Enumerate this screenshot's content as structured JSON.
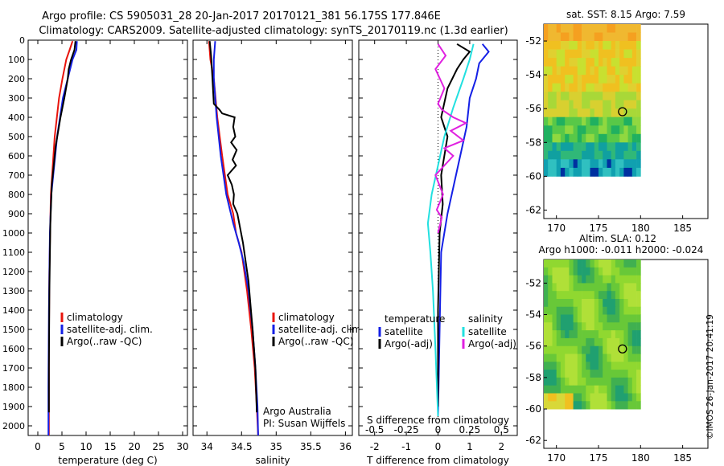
{
  "header": {
    "line1": "Argo profile: CS 5905031_28 20-Jan-2017 20170121_381 56.175S 177.846E",
    "line2": "Climatology: CARS2009. Satellite-adjusted climatology: synTS_20170119.nc (1.3d earlier)"
  },
  "colors": {
    "climatology": "#e8140c",
    "satellite": "#1420e6",
    "argo": "#000000",
    "sat_salinity": "#22e0e0",
    "argo_salinity": "#e020e0"
  },
  "chart_data": [
    {
      "type": "line",
      "xlabel": "temperature (deg C)",
      "ylabel": "",
      "xlim": [
        -2,
        31
      ],
      "ylim": [
        2050,
        0
      ],
      "xticks": [
        0,
        5,
        10,
        15,
        20,
        25,
        30
      ],
      "yticks": [
        0,
        100,
        200,
        300,
        400,
        500,
        600,
        700,
        800,
        900,
        1000,
        1100,
        1200,
        1300,
        1400,
        1500,
        1600,
        1700,
        1800,
        1900,
        2000
      ],
      "legend": {
        "position": "center-right",
        "entries": [
          "climatology",
          "satellite-adj. clim.",
          "Argo(..raw -QC)"
        ]
      },
      "series": [
        {
          "name": "climatology",
          "color": "#e8140c",
          "x": [
            7.2,
            6.6,
            5.9,
            5.1,
            4.4,
            3.5,
            2.7,
            2.4,
            2.3,
            2.3
          ],
          "y": [
            5,
            50,
            100,
            200,
            300,
            500,
            800,
            1200,
            1600,
            2050
          ]
        },
        {
          "name": "satellite-adj. clim.",
          "color": "#1420e6",
          "x": [
            8.1,
            8.0,
            7.2,
            6.2,
            5.2,
            4.0,
            2.8,
            2.5,
            2.3,
            2.2,
            2.2
          ],
          "y": [
            5,
            50,
            100,
            200,
            300,
            500,
            800,
            1000,
            1400,
            1800,
            2050
          ]
        },
        {
          "name": "Argo(..raw -QC)",
          "color": "#000000",
          "x": [
            7.8,
            7.6,
            6.9,
            6.4,
            6.2,
            5.5,
            4.7,
            3.7,
            2.9,
            2.6,
            2.4,
            2.3,
            2.3
          ],
          "y": [
            5,
            50,
            100,
            150,
            200,
            300,
            400,
            550,
            750,
            950,
            1300,
            1700,
            1930
          ]
        }
      ]
    },
    {
      "type": "line",
      "xlabel": "salinity",
      "xlim": [
        33.8,
        36.1
      ],
      "ylim": [
        2050,
        0
      ],
      "xticks": [
        34,
        34.5,
        35,
        35.5,
        36
      ],
      "legend": {
        "position": "center-right",
        "entries": [
          "climatology",
          "satellite-adj. clim.",
          "Argo(..raw -QC)"
        ]
      },
      "annotations": [
        "Argo Australia",
        "PI: Susan Wijffels"
      ],
      "series": [
        {
          "name": "climatology",
          "color": "#e8140c",
          "x": [
            34.03,
            34.05,
            34.1,
            34.15,
            34.22,
            34.3,
            34.38,
            34.42,
            34.5,
            34.58,
            34.64,
            34.69,
            34.72,
            34.74
          ],
          "y": [
            5,
            100,
            200,
            400,
            600,
            800,
            900,
            1000,
            1100,
            1300,
            1500,
            1700,
            1900,
            2050
          ]
        },
        {
          "name": "satellite-adj. clim.",
          "color": "#1420e6",
          "x": [
            34.12,
            34.1,
            34.1,
            34.14,
            34.2,
            34.28,
            34.38,
            34.46,
            34.53,
            34.6,
            34.66,
            34.7,
            34.73,
            34.74
          ],
          "y": [
            5,
            100,
            200,
            400,
            600,
            800,
            950,
            1050,
            1150,
            1300,
            1500,
            1700,
            1900,
            2050
          ]
        },
        {
          "name": "Argo(..raw -QC)",
          "color": "#000000",
          "x": [
            34.04,
            34.06,
            34.08,
            34.1,
            34.18,
            34.22,
            34.4,
            34.38,
            34.41,
            34.35,
            34.43,
            34.37,
            34.42,
            34.3,
            34.36,
            34.39,
            34.38,
            34.44,
            34.52,
            34.6,
            34.66,
            34.7,
            34.72
          ],
          "y": [
            5,
            80,
            200,
            330,
            360,
            380,
            400,
            450,
            500,
            530,
            570,
            620,
            650,
            700,
            750,
            800,
            850,
            900,
            1050,
            1250,
            1500,
            1700,
            1930
          ]
        }
      ]
    },
    {
      "type": "line",
      "xlabel": "T difference from climatology",
      "xlabel2": "S difference from climatology",
      "xlim": [
        -2.5,
        2.5
      ],
      "ylim": [
        2050,
        0
      ],
      "xticks": [
        -2,
        -1,
        0,
        1,
        2
      ],
      "xticks2": [
        -0.5,
        -0.25,
        0,
        0.25,
        0.5
      ],
      "legend": {
        "position": "lower",
        "headers": [
          "temperature",
          "salinity"
        ],
        "entries": [
          "satellite",
          "Argo(-adj)",
          "satellite",
          "Argo(-adj)"
        ]
      },
      "series": [
        {
          "name": "satellite",
          "group": "temperature",
          "color": "#1420e6",
          "x": [
            1.4,
            1.6,
            1.3,
            1.2,
            1.0,
            0.9,
            0.7,
            0.5,
            0.3,
            0.1,
            0.05,
            0.0
          ],
          "y": [
            20,
            60,
            120,
            200,
            300,
            450,
            600,
            750,
            900,
            1100,
            1500,
            1950
          ]
        },
        {
          "name": "Argo(-adj)",
          "group": "temperature",
          "color": "#000000",
          "x": [
            0.6,
            1.0,
            0.8,
            0.6,
            0.3,
            0.1,
            0.3,
            0.1,
            0.15,
            0.05,
            0.0,
            0.0
          ],
          "y": [
            20,
            60,
            100,
            150,
            250,
            400,
            500,
            700,
            850,
            1000,
            1400,
            1900
          ]
        },
        {
          "name": "satellite",
          "group": "salinity",
          "color": "#22e0e0",
          "x": [
            0.28,
            0.25,
            0.2,
            0.12,
            0.05,
            0.0,
            -0.05,
            -0.08,
            -0.06,
            -0.04,
            -0.02,
            0.0
          ],
          "y": [
            20,
            100,
            200,
            350,
            500,
            650,
            800,
            950,
            1100,
            1300,
            1600,
            1950
          ]
        },
        {
          "name": "Argo(-adj)",
          "group": "salinity",
          "color": "#e020e0",
          "x": [
            0.0,
            0.06,
            -0.02,
            0.05,
            0.0,
            0.03,
            0.12,
            0.22,
            0.1,
            0.2,
            0.05,
            0.12,
            -0.02,
            0.04,
            -0.01,
            0.03,
            0.0
          ],
          "y": [
            20,
            80,
            150,
            250,
            330,
            360,
            400,
            430,
            470,
            520,
            560,
            600,
            700,
            800,
            880,
            920,
            1000
          ]
        }
      ]
    }
  ],
  "maps": [
    {
      "title": "sat. SST: 8.15 Argo: 7.59",
      "lon_ticks": [
        170,
        175,
        180,
        185
      ],
      "lat_ticks": [
        -52,
        -54,
        -56,
        -58,
        -60,
        -62
      ],
      "marker": {
        "lon": 177.85,
        "lat": -56.18
      },
      "field": "sst"
    },
    {
      "title1": "Altim. SLA: 0.12",
      "title2": "Argo h1000: -0.011 h2000: -0.024",
      "lon_ticks": [
        170,
        175,
        180,
        185
      ],
      "lat_ticks": [
        -52,
        -54,
        -56,
        -58,
        -60,
        -62
      ],
      "marker": {
        "lon": 177.85,
        "lat": -56.18
      },
      "field": "sla"
    }
  ],
  "footer": {
    "credit": "©IMOS 26-Jan-2017 20:41:19"
  }
}
